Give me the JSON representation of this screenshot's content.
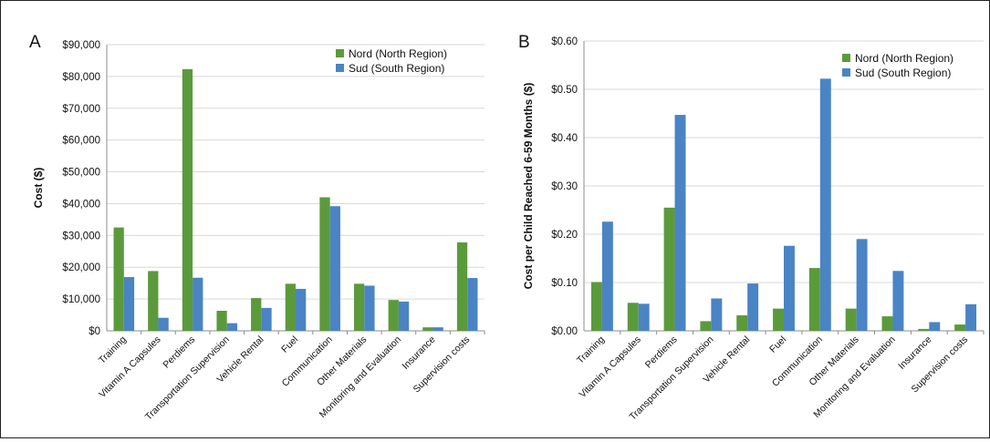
{
  "chart_data": [
    {
      "panel_label": "A",
      "type": "bar",
      "ylabel": "Cost ($)",
      "ylim": [
        0,
        90000
      ],
      "yticks": [
        0,
        10000,
        20000,
        30000,
        40000,
        50000,
        60000,
        70000,
        80000,
        90000
      ],
      "ytick_labels": [
        "$0",
        "$10,000",
        "$20,000",
        "$30,000",
        "$40,000",
        "$50,000",
        "$60,000",
        "$70,000",
        "$80,000",
        "$90,000"
      ],
      "grid": true,
      "legend_position": "top-right",
      "categories": [
        "Training",
        "Vitamin A Capsules",
        "Perdiems",
        "Transportation Supervision",
        "Vehicle Rental",
        "Fuel",
        "Communication",
        "Other Materials",
        "Monitoring and Evaluation",
        "Insurance",
        "Supervision costs"
      ],
      "series": [
        {
          "name": "Nord (North Region)",
          "color": "#5b9a3b",
          "values": [
            32500,
            18800,
            82300,
            6300,
            10300,
            14800,
            42000,
            14800,
            9700,
            1100,
            27800
          ]
        },
        {
          "name": "Sud (South Region)",
          "color": "#4a84c4",
          "values": [
            16900,
            4100,
            16700,
            2400,
            7200,
            13200,
            39200,
            14200,
            9200,
            1100,
            16600
          ]
        }
      ]
    },
    {
      "panel_label": "B",
      "type": "bar",
      "ylabel": "Cost per Child Reached 6-59 Months ($)",
      "ylim": [
        0,
        0.6
      ],
      "yticks": [
        0,
        0.1,
        0.2,
        0.3,
        0.4,
        0.5,
        0.6
      ],
      "ytick_labels": [
        "$0.00",
        "$0.10",
        "$0.20",
        "$0.30",
        "$0.40",
        "$0.50",
        "$0.60"
      ],
      "grid": true,
      "legend_position": "top-right",
      "categories": [
        "Training",
        "Vitamin A Capsules",
        "Perdiems",
        "Transportation Supervision",
        "Vehicle Rental",
        "Fuel",
        "Communication",
        "Other Materials",
        "Monitoring and Evaluation",
        "Insurance",
        "Supervision costs"
      ],
      "series": [
        {
          "name": "Nord (North Region)",
          "color": "#5b9a3b",
          "values": [
            0.101,
            0.058,
            0.255,
            0.02,
            0.032,
            0.046,
            0.13,
            0.046,
            0.03,
            0.004,
            0.013
          ]
        },
        {
          "name": "Sud (South Region)",
          "color": "#4a84c4",
          "values": [
            0.226,
            0.056,
            0.447,
            0.067,
            0.098,
            0.176,
            0.522,
            0.19,
            0.124,
            0.018,
            0.055
          ]
        }
      ]
    }
  ]
}
